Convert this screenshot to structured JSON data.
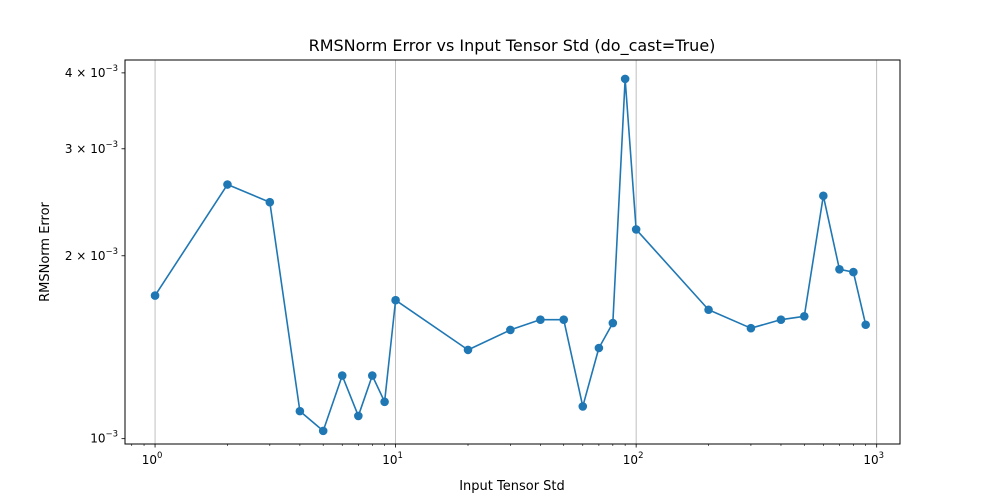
{
  "chart_data": {
    "type": "line",
    "title": "RMSNorm Error vs Input Tensor Std (do_cast=True)",
    "xlabel": "Input Tensor Std",
    "ylabel": "RMSNorm Error",
    "xscale": "log",
    "yscale": "log",
    "xlim": [
      0.75,
      1250
    ],
    "ylim": [
      0.00098,
      0.0042
    ],
    "grid": "x-major",
    "x_ticks": [
      {
        "value": 1,
        "base": "10",
        "exp": "0"
      },
      {
        "value": 10,
        "base": "10",
        "exp": "1"
      },
      {
        "value": 100,
        "base": "10",
        "exp": "2"
      },
      {
        "value": 1000,
        "base": "10",
        "exp": "3"
      }
    ],
    "y_ticks": [
      {
        "value": 0.001,
        "mant": "",
        "base": "10",
        "exp": "−3"
      },
      {
        "value": 0.002,
        "mant": "2 × ",
        "base": "10",
        "exp": "−3"
      },
      {
        "value": 0.003,
        "mant": "3 × ",
        "base": "10",
        "exp": "−3"
      },
      {
        "value": 0.004,
        "mant": "4 × ",
        "base": "10",
        "exp": "−3"
      }
    ],
    "series": [
      {
        "color": "#1f77b4",
        "x": [
          1,
          2,
          3,
          4,
          5,
          6,
          7,
          8,
          9,
          10,
          20,
          30,
          40,
          50,
          60,
          70,
          80,
          90,
          100,
          200,
          300,
          400,
          500,
          600,
          700,
          800,
          900
        ],
        "y": [
          0.00172,
          0.00262,
          0.00245,
          0.00111,
          0.00103,
          0.00127,
          0.00109,
          0.00127,
          0.00115,
          0.00169,
          0.0014,
          0.00151,
          0.00157,
          0.00157,
          0.00113,
          0.00141,
          0.00155,
          0.00391,
          0.00221,
          0.00163,
          0.00152,
          0.00157,
          0.00159,
          0.00251,
          0.0019,
          0.00188,
          0.00154
        ]
      }
    ]
  }
}
